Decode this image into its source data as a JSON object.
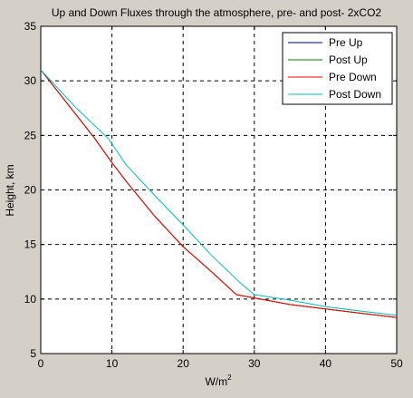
{
  "chart_data": {
    "type": "line",
    "title": "Up and Down Fluxes through the atmosphere, pre- and post- 2xCO2",
    "xlabel_base": "W/m",
    "xlabel_sup": "2",
    "ylabel": "Height, km",
    "xlim": [
      0,
      50
    ],
    "ylim": [
      5,
      35
    ],
    "xticks": [
      0,
      10,
      20,
      30,
      40,
      50
    ],
    "yticks": [
      5,
      10,
      15,
      20,
      25,
      30,
      35
    ],
    "grid": true,
    "legend_position": "top-right",
    "series": [
      {
        "name": "Pre Up",
        "color": "#000080",
        "x": [
          0.0,
          7.5,
          10.0,
          12.0,
          16.0,
          20.0,
          24.0,
          27.5,
          30.0,
          35.0,
          40.0,
          45.0,
          50.0
        ],
        "y": [
          31.0,
          24.8,
          22.5,
          20.8,
          17.6,
          14.8,
          12.5,
          10.4,
          10.1,
          9.5,
          9.1,
          8.7,
          8.3
        ]
      },
      {
        "name": "Post Up",
        "color": "#008000",
        "x": [
          0.0,
          7.5,
          10.0,
          12.0,
          16.0,
          20.0,
          24.0,
          27.5,
          30.0,
          35.0,
          40.0,
          45.0,
          50.0
        ],
        "y": [
          31.0,
          24.8,
          22.5,
          20.8,
          17.6,
          14.8,
          12.5,
          10.4,
          10.1,
          9.5,
          9.1,
          8.7,
          8.3
        ]
      },
      {
        "name": "Pre Down",
        "color": "#ff0000",
        "x": [
          0.0,
          7.5,
          10.0,
          12.0,
          16.0,
          20.0,
          24.0,
          27.5,
          30.0,
          35.0,
          40.0,
          45.0,
          50.0
        ],
        "y": [
          31.0,
          24.8,
          22.5,
          20.8,
          17.6,
          14.8,
          12.5,
          10.4,
          10.1,
          9.5,
          9.1,
          8.7,
          8.3
        ]
      },
      {
        "name": "Post Down",
        "color": "#00bfbf",
        "x": [
          0.0,
          5.0,
          9.5,
          12.0,
          16.0,
          20.0,
          24.0,
          28.0,
          30.0,
          35.0,
          40.0,
          45.0,
          50.0
        ],
        "y": [
          31.0,
          27.5,
          24.7,
          22.3,
          19.5,
          16.8,
          14.0,
          11.5,
          10.4,
          9.9,
          9.3,
          8.9,
          8.5
        ]
      }
    ]
  }
}
